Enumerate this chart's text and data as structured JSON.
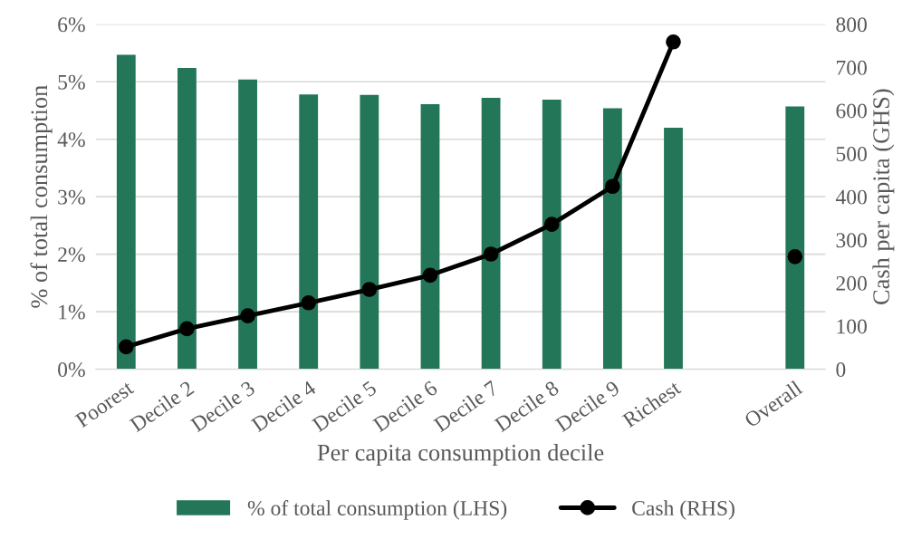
{
  "chart_data": {
    "type": "bar",
    "xlabel": "Per capita consumption decile",
    "ylabel": "% of total consumption",
    "y2label": "Cash per capita (GHS)",
    "categories": [
      "Poorest",
      "Decile 2",
      "Decile 3",
      "Decile 4",
      "Decile 5",
      "Decile 6",
      "Decile 7",
      "Decile 8",
      "Decile 9",
      "Richest",
      null,
      "Overall"
    ],
    "series": [
      {
        "name": "% of total consumption (LHS)",
        "color": "#237758",
        "values": [
          5.47,
          5.24,
          5.04,
          4.78,
          4.77,
          4.61,
          4.72,
          4.69,
          4.54,
          4.2,
          null,
          4.57
        ]
      },
      {
        "name": "Cash (RHS)",
        "type": "line",
        "axis": "y2",
        "color": "#000000",
        "marker": "circle",
        "line_style": "solid",
        "values": [
          52,
          94,
          124,
          154,
          185,
          218,
          267,
          336,
          424,
          759,
          null,
          261
        ]
      }
    ],
    "ylim": [
      0,
      6
    ],
    "yticks": [
      {
        "value": 0,
        "label": "0%"
      },
      {
        "value": 1,
        "label": "1%"
      },
      {
        "value": 2,
        "label": "2%"
      },
      {
        "value": 3,
        "label": "3%"
      },
      {
        "value": 4,
        "label": "4%"
      },
      {
        "value": 5,
        "label": "5%"
      },
      {
        "value": 6,
        "label": "6%"
      }
    ],
    "y2lim": [
      0,
      800
    ],
    "y2ticks": [
      0,
      100,
      200,
      300,
      400,
      500,
      600,
      700,
      800
    ],
    "grid": "y",
    "legend": "bottom"
  }
}
